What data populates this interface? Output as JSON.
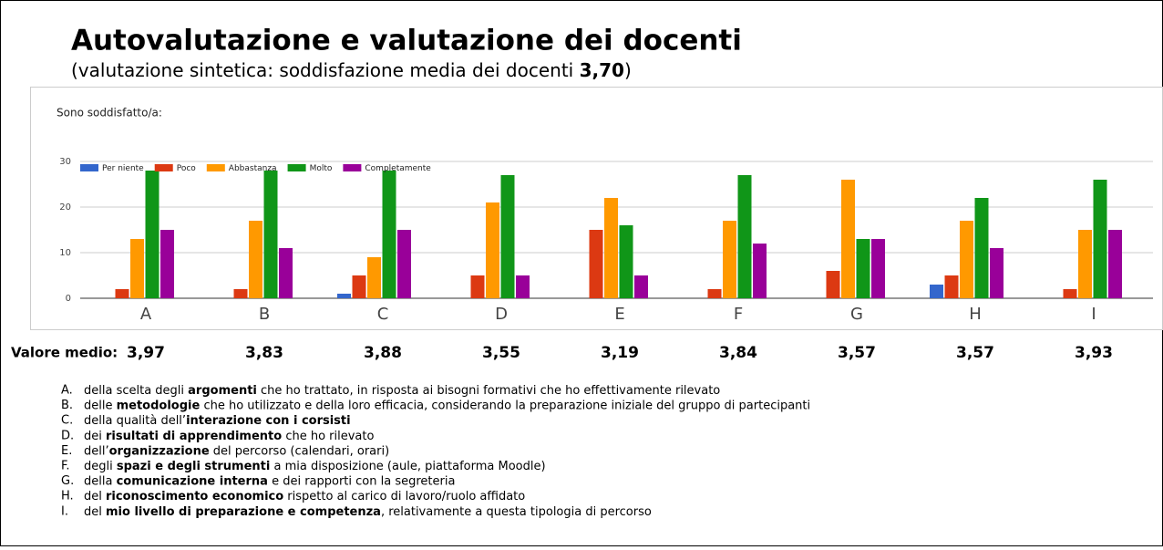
{
  "chart_data": {
    "type": "bar",
    "title": "Autovalutazione e valutazione dei docenti",
    "subtitle": {
      "pre": "(valutazione sintetica: soddisfazione media dei docenti ",
      "bold": "3,70",
      "post": ")"
    },
    "chart_label": "Sono soddisfatto/a:",
    "categories": [
      "A",
      "B",
      "C",
      "D",
      "E",
      "F",
      "G",
      "H",
      "I"
    ],
    "series": [
      {
        "name": "Per niente",
        "color": "#3366cc",
        "values": [
          0,
          0,
          1,
          0,
          0,
          0,
          0,
          3,
          0
        ]
      },
      {
        "name": "Poco",
        "color": "#dc3912",
        "values": [
          2,
          2,
          5,
          5,
          15,
          2,
          6,
          5,
          2
        ]
      },
      {
        "name": "Abbastanza",
        "color": "#ff9900",
        "values": [
          13,
          17,
          9,
          21,
          22,
          17,
          26,
          17,
          15
        ]
      },
      {
        "name": "Molto",
        "color": "#109618",
        "values": [
          28,
          28,
          28,
          27,
          16,
          27,
          13,
          22,
          26
        ]
      },
      {
        "name": "Completamente",
        "color": "#990099",
        "values": [
          15,
          11,
          15,
          5,
          5,
          12,
          13,
          11,
          15
        ]
      }
    ],
    "ylim": [
      0,
      30
    ],
    "yticks": [
      0,
      10,
      20,
      30
    ],
    "grid": true,
    "mean_title": "Valore medio:",
    "means": [
      "3,97",
      "3,83",
      "3,88",
      "3,55",
      "3,19",
      "3,84",
      "3,57",
      "3,57",
      "3,93"
    ],
    "notes": [
      {
        "letter": "A.",
        "parts": [
          {
            "text": "della scelta degli ",
            "bold": false
          },
          {
            "text": "argomenti",
            "bold": true
          },
          {
            "text": " che ho trattato, in risposta ai bisogni formativi che ho effettivamente rilevato",
            "bold": false
          }
        ]
      },
      {
        "letter": "B.",
        "parts": [
          {
            "text": "delle ",
            "bold": false
          },
          {
            "text": "metodologie",
            "bold": true
          },
          {
            "text": " che ho utilizzato e della loro efficacia, considerando la preparazione iniziale del gruppo di partecipanti",
            "bold": false
          }
        ]
      },
      {
        "letter": "C.",
        "parts": [
          {
            "text": "della qualità dell’",
            "bold": false
          },
          {
            "text": "interazione con i corsisti",
            "bold": true
          }
        ]
      },
      {
        "letter": "D.",
        "parts": [
          {
            "text": "dei ",
            "bold": false
          },
          {
            "text": "risultati di apprendimento",
            "bold": true
          },
          {
            "text": " che ho rilevato",
            "bold": false
          }
        ]
      },
      {
        "letter": "E.",
        "parts": [
          {
            "text": "dell’",
            "bold": false
          },
          {
            "text": "organizzazione",
            "bold": true
          },
          {
            "text": " del percorso (calendari, orari)",
            "bold": false
          }
        ]
      },
      {
        "letter": "F.",
        "parts": [
          {
            "text": "degli ",
            "bold": false
          },
          {
            "text": "spazi e degli strumenti",
            "bold": true
          },
          {
            "text": " a mia disposizione (aule, piattaforma Moodle)",
            "bold": false
          }
        ]
      },
      {
        "letter": "G.",
        "parts": [
          {
            "text": "della ",
            "bold": false
          },
          {
            "text": "comunicazione interna",
            "bold": true
          },
          {
            "text": " e dei rapporti con la segreteria",
            "bold": false
          }
        ]
      },
      {
        "letter": "H.",
        "parts": [
          {
            "text": "del ",
            "bold": false
          },
          {
            "text": "riconoscimento economico",
            "bold": true
          },
          {
            "text": " rispetto al carico di lavoro/ruolo affidato",
            "bold": false
          }
        ]
      },
      {
        "letter": "I.",
        "parts": [
          {
            "text": "del ",
            "bold": false
          },
          {
            "text": "mio livello di preparazione e competenza",
            "bold": true
          },
          {
            "text": ", relativamente a questa tipologia di percorso",
            "bold": false
          }
        ]
      }
    ]
  }
}
